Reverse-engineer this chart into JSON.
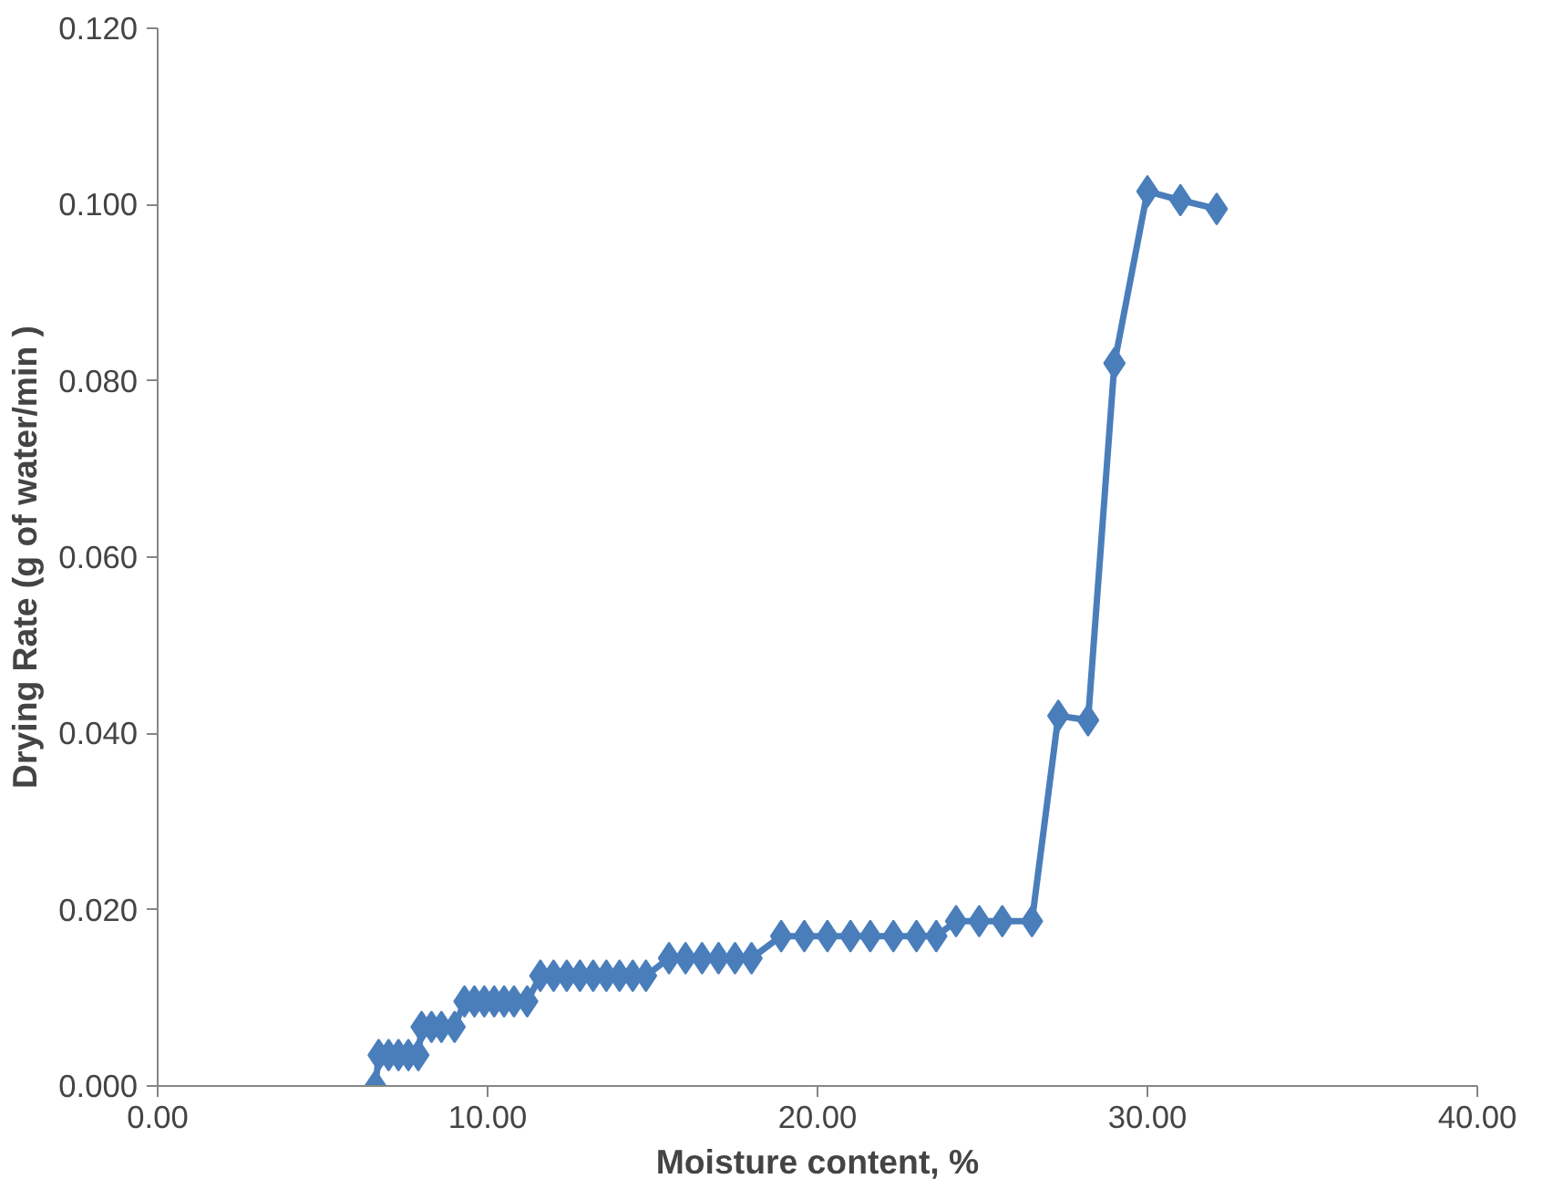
{
  "chart_data": {
    "type": "line",
    "xlabel": "Moisture content, %",
    "ylabel": "Drying Rate (g of water/min )",
    "marker": "diamond",
    "grid": false,
    "xlim": [
      0,
      40
    ],
    "ylim": [
      0,
      0.12
    ],
    "xticks": [
      {
        "value": 0,
        "label": "0.00"
      },
      {
        "value": 10,
        "label": "10.00"
      },
      {
        "value": 20,
        "label": "20.00"
      },
      {
        "value": 30,
        "label": "30.00"
      },
      {
        "value": 40,
        "label": "40.00"
      }
    ],
    "yticks": [
      {
        "value": 0,
        "label": "0.000"
      },
      {
        "value": 0.02,
        "label": "0.020"
      },
      {
        "value": 0.04,
        "label": "0.040"
      },
      {
        "value": 0.06,
        "label": "0.060"
      },
      {
        "value": 0.08,
        "label": "0.080"
      },
      {
        "value": 0.1,
        "label": "0.100"
      },
      {
        "value": 0.12,
        "label": "0.120"
      }
    ],
    "series": [
      {
        "color": "#4a7ebb",
        "x": [
          32.1,
          31.0,
          30.0,
          29.0,
          28.2,
          27.3,
          26.5,
          25.6,
          24.9,
          24.2,
          23.6,
          23.0,
          22.3,
          21.6,
          21.0,
          20.3,
          19.6,
          18.9,
          18.0,
          17.5,
          17.0,
          16.5,
          16.0,
          15.5,
          14.8,
          14.4,
          14.0,
          13.6,
          13.2,
          12.8,
          12.4,
          12.0,
          11.6,
          11.2,
          10.8,
          10.5,
          10.2,
          9.9,
          9.6,
          9.3,
          9.0,
          8.6,
          8.3,
          8.0,
          7.9,
          7.6,
          7.3,
          7.0,
          6.7,
          6.6
        ],
        "values": [
          0.0995,
          0.1005,
          0.1015,
          0.082,
          0.0415,
          0.042,
          0.0187,
          0.0187,
          0.0187,
          0.0187,
          0.017,
          0.017,
          0.017,
          0.017,
          0.017,
          0.017,
          0.017,
          0.017,
          0.0145,
          0.0145,
          0.0145,
          0.0145,
          0.0145,
          0.0145,
          0.0125,
          0.0125,
          0.0125,
          0.0125,
          0.0125,
          0.0125,
          0.0125,
          0.0125,
          0.0125,
          0.0096,
          0.0096,
          0.0096,
          0.0096,
          0.0096,
          0.0096,
          0.0096,
          0.0067,
          0.0067,
          0.0067,
          0.0067,
          0.0035,
          0.0035,
          0.0035,
          0.0035,
          0.0035,
          0.0
        ]
      }
    ]
  }
}
